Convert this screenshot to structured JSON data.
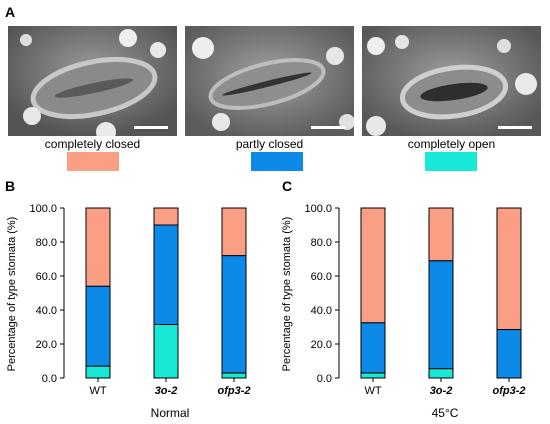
{
  "panels": {
    "a": "A",
    "b": "B",
    "c": "C"
  },
  "legend": [
    {
      "label": "completely closed",
      "color": "#fa9e84"
    },
    {
      "label": "partly closed",
      "color": "#0d8ae8"
    },
    {
      "label": "completely open",
      "color": "#18e9d6"
    }
  ],
  "chart_data": [
    {
      "type": "bar",
      "stacked": true,
      "categories": [
        "WT",
        "3o-2",
        "ofp3-2"
      ],
      "category_italic": [
        false,
        true,
        true
      ],
      "series": [
        {
          "name": "completely open",
          "color": "#18e9d6",
          "values": [
            7,
            31.5,
            3
          ]
        },
        {
          "name": "partly closed",
          "color": "#0d8ae8",
          "values": [
            47,
            58.5,
            69
          ]
        },
        {
          "name": "completely closed",
          "color": "#fa9e84",
          "values": [
            46,
            10,
            28
          ]
        }
      ],
      "ylim": [
        0,
        100
      ],
      "yticks": [
        "0.0",
        "20.0",
        "40.0",
        "60.0",
        "80.0",
        "100.0"
      ],
      "ylabel": "Percentage of type stomata (%)",
      "xlabel": "Normal"
    },
    {
      "type": "bar",
      "stacked": true,
      "categories": [
        "WT",
        "3o-2",
        "ofp3-2"
      ],
      "category_italic": [
        false,
        true,
        true
      ],
      "series": [
        {
          "name": "completely open",
          "color": "#18e9d6",
          "values": [
            3,
            5.5,
            0
          ]
        },
        {
          "name": "partly closed",
          "color": "#0d8ae8",
          "values": [
            29.5,
            63.5,
            28.5
          ]
        },
        {
          "name": "completely closed",
          "color": "#fa9e84",
          "values": [
            67.5,
            31,
            71.5
          ]
        }
      ],
      "ylim": [
        0,
        100
      ],
      "yticks": [
        "0.0",
        "20.0",
        "40.0",
        "60.0",
        "80.0",
        "100.0"
      ],
      "ylabel": "Percentage of type stomata (%)",
      "xlabel": "45°C"
    }
  ]
}
